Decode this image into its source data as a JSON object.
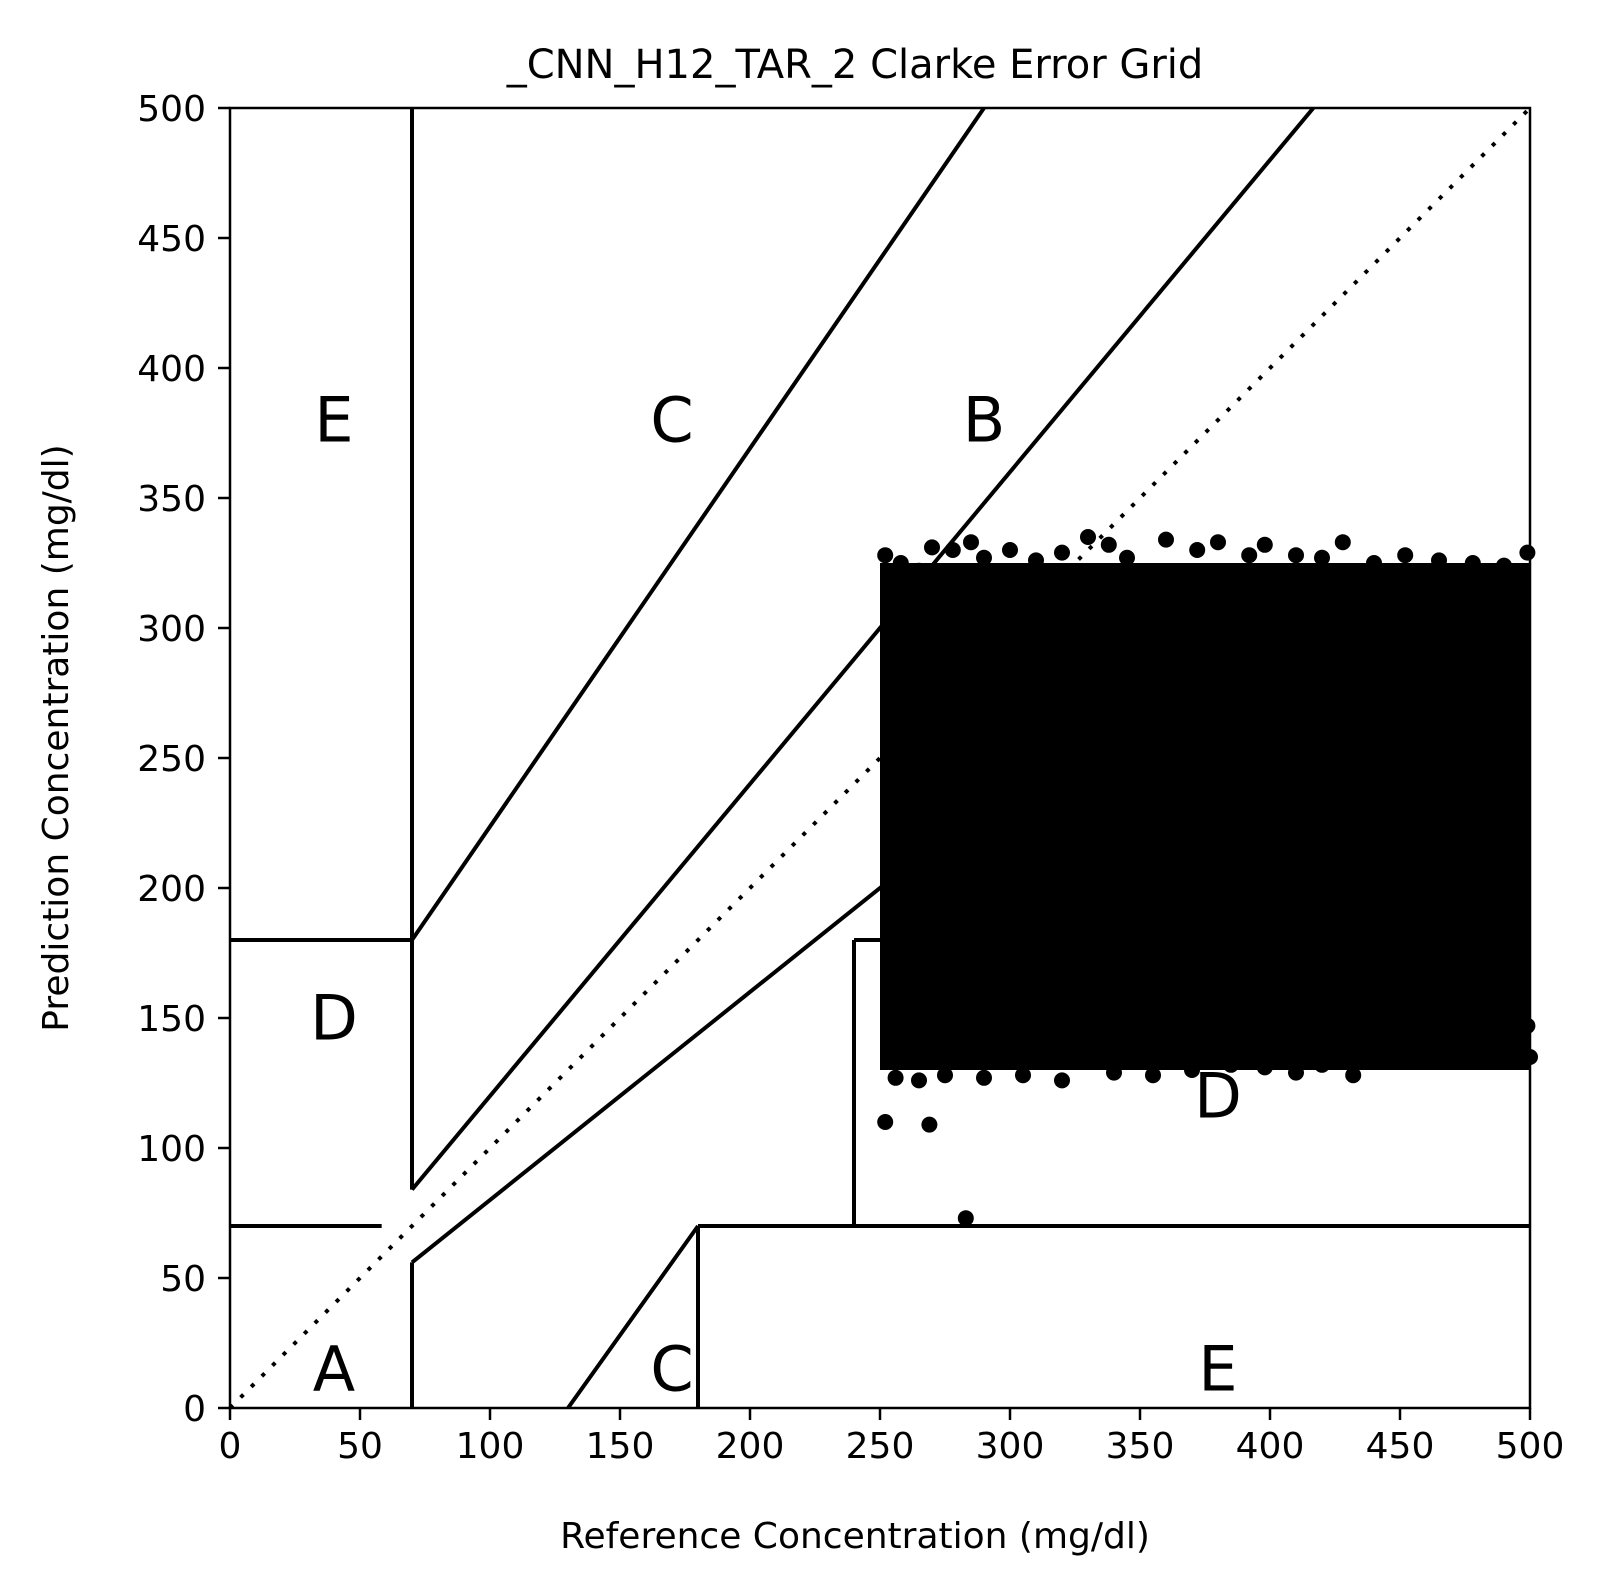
{
  "chart_data": {
    "type": "scatter",
    "title": "_CNN_H12_TAR_2 Clarke Error Grid",
    "xlabel": "Reference Concentration (mg/dl)",
    "ylabel": "Prediction Concentration (mg/dl)",
    "xlim": [
      0,
      500
    ],
    "ylim": [
      0,
      500
    ],
    "xticks": [
      "0",
      "50",
      "100",
      "150",
      "200",
      "250",
      "300",
      "350",
      "400",
      "450",
      "500"
    ],
    "yticks": [
      "0",
      "50",
      "100",
      "150",
      "200",
      "250",
      "300",
      "350",
      "400",
      "450",
      "500"
    ],
    "grid": false,
    "legend": "none",
    "marker_color": "#000000",
    "reference_line": {
      "style": "dotted",
      "from": [
        0,
        0
      ],
      "to": [
        500,
        500
      ]
    },
    "zone_boundaries": [
      {
        "points": [
          [
            70,
            500
          ],
          [
            70,
            84
          ]
        ]
      },
      {
        "points": [
          [
            70,
            180
          ],
          [
            290,
            500
          ]
        ]
      },
      {
        "points": [
          [
            70,
            84
          ],
          [
            416.67,
            500
          ]
        ]
      },
      {
        "points": [
          [
            0,
            180
          ],
          [
            70,
            180
          ]
        ]
      },
      {
        "points": [
          [
            0,
            70
          ],
          [
            58.33,
            70
          ]
        ]
      },
      {
        "points": [
          [
            70,
            56
          ],
          [
            70,
            0
          ]
        ]
      },
      {
        "points": [
          [
            70,
            56
          ],
          [
            400,
            320
          ]
        ]
      },
      {
        "points": [
          [
            130,
            0
          ],
          [
            180,
            70
          ]
        ]
      },
      {
        "points": [
          [
            180,
            70
          ],
          [
            180,
            0
          ]
        ]
      },
      {
        "points": [
          [
            180,
            70
          ],
          [
            500,
            70
          ]
        ]
      },
      {
        "points": [
          [
            240,
            70
          ],
          [
            240,
            180
          ]
        ]
      },
      {
        "points": [
          [
            240,
            180
          ],
          [
            500,
            180
          ]
        ]
      }
    ],
    "zone_labels": [
      {
        "text": "E",
        "x": 40,
        "y": 380
      },
      {
        "text": "C",
        "x": 170,
        "y": 380
      },
      {
        "text": "B",
        "x": 290,
        "y": 380
      },
      {
        "text": "D",
        "x": 40,
        "y": 150
      },
      {
        "text": "A",
        "x": 40,
        "y": 15
      },
      {
        "text": "C",
        "x": 170,
        "y": 15
      },
      {
        "text": "E",
        "x": 380,
        "y": 15
      },
      {
        "text": "D",
        "x": 380,
        "y": 120
      }
    ],
    "scatter_cloud": {
      "x_range": [
        250,
        500
      ],
      "y_range": [
        130,
        325
      ],
      "edge_points": [
        [
          252,
          328
        ],
        [
          258,
          325
        ],
        [
          265,
          322
        ],
        [
          270,
          331
        ],
        [
          278,
          330
        ],
        [
          285,
          333
        ],
        [
          290,
          327
        ],
        [
          300,
          330
        ],
        [
          310,
          326
        ],
        [
          320,
          329
        ],
        [
          330,
          335
        ],
        [
          338,
          332
        ],
        [
          345,
          327
        ],
        [
          360,
          334
        ],
        [
          372,
          330
        ],
        [
          380,
          333
        ],
        [
          392,
          328
        ],
        [
          398,
          332
        ],
        [
          410,
          328
        ],
        [
          420,
          327
        ],
        [
          428,
          333
        ],
        [
          440,
          325
        ],
        [
          452,
          328
        ],
        [
          465,
          326
        ],
        [
          478,
          325
        ],
        [
          490,
          324
        ],
        [
          499,
          329
        ],
        [
          256,
          127
        ],
        [
          265,
          126
        ],
        [
          275,
          128
        ],
        [
          290,
          127
        ],
        [
          305,
          128
        ],
        [
          320,
          126
        ],
        [
          340,
          129
        ],
        [
          355,
          128
        ],
        [
          370,
          130
        ],
        [
          385,
          132
        ],
        [
          398,
          131
        ],
        [
          410,
          129
        ],
        [
          420,
          132
        ],
        [
          432,
          128
        ],
        [
          442,
          135
        ],
        [
          450,
          140
        ],
        [
          458,
          144
        ],
        [
          466,
          143
        ],
        [
          474,
          152
        ],
        [
          482,
          147
        ],
        [
          490,
          141
        ],
        [
          494,
          150
        ],
        [
          499,
          147
        ],
        [
          500,
          135
        ],
        [
          252,
          110
        ],
        [
          269,
          109
        ],
        [
          283,
          73
        ]
      ]
    }
  }
}
